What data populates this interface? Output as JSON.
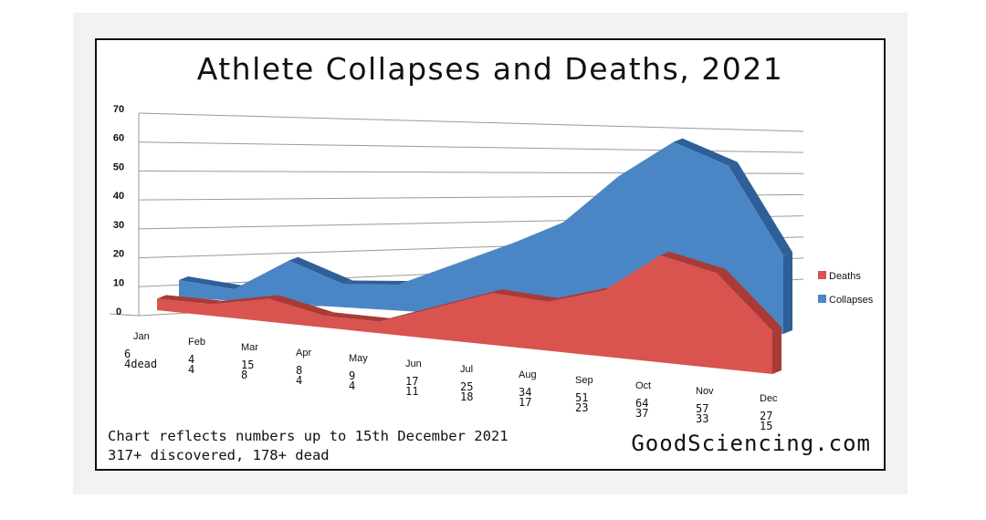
{
  "colors": {
    "collapses": "#4a86c6",
    "collapses_side": "#2e5f98",
    "deaths": "#d9534f",
    "deaths_side": "#a93a36",
    "grid": "#9a9a9a"
  },
  "footer": {
    "note_line1": "Chart reflects numbers up to 15th December 2021",
    "note_line2": "317+ discovered, 178+ dead",
    "brand": "GoodSciencing.com"
  },
  "chart_data": {
    "type": "area",
    "title": "Athlete Collapses and Deaths, 2021",
    "categories": [
      "Jan",
      "Feb",
      "Mar",
      "Apr",
      "May",
      "Jun",
      "Jul",
      "Aug",
      "Sep",
      "Oct",
      "Nov",
      "Dec"
    ],
    "category_value_labels": [
      [
        "6",
        "4dead"
      ],
      [
        "4",
        "4"
      ],
      [
        "15",
        "8"
      ],
      [
        "8",
        "4"
      ],
      [
        "9",
        "4"
      ],
      [
        "17",
        "11"
      ],
      [
        "25",
        "18"
      ],
      [
        "34",
        "17"
      ],
      [
        "51",
        "23"
      ],
      [
        "64",
        "37"
      ],
      [
        "57",
        "33"
      ],
      [
        "27",
        "15"
      ]
    ],
    "series": [
      {
        "name": "Collapses",
        "values": [
          6,
          4,
          15,
          8,
          9,
          17,
          25,
          34,
          51,
          64,
          57,
          27
        ]
      },
      {
        "name": "Deaths",
        "values": [
          4,
          4,
          8,
          4,
          4,
          11,
          18,
          17,
          23,
          37,
          33,
          15
        ]
      }
    ],
    "yticks": [
      "0",
      "10",
      "20",
      "30",
      "40",
      "50",
      "60",
      "70"
    ],
    "ylim": [
      0,
      70
    ],
    "grid": true,
    "legend_position": "right",
    "projection": "3d-perspective"
  }
}
